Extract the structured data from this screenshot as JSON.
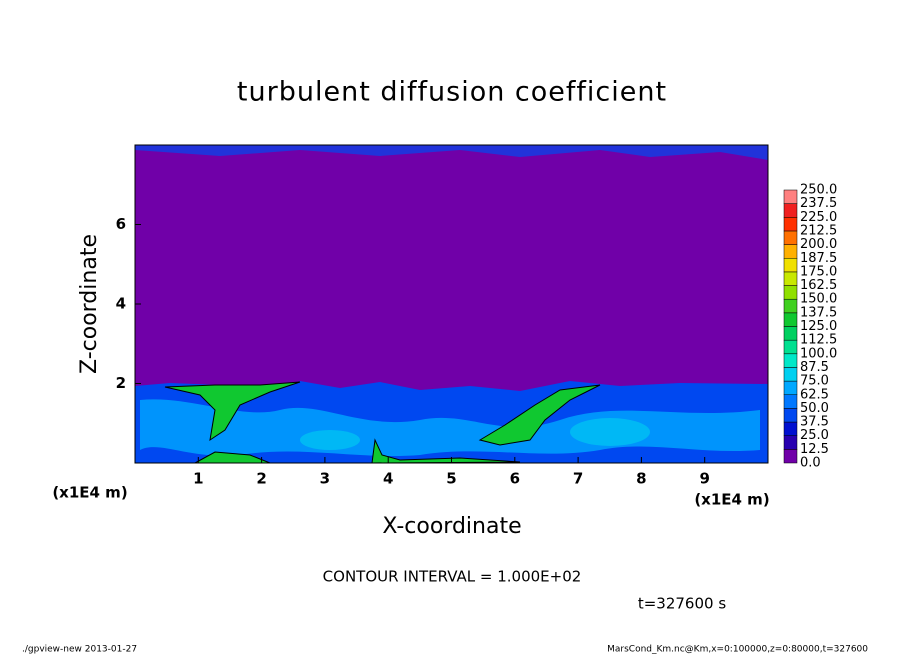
{
  "chart_data": {
    "type": "contour",
    "title": "turbulent diffusion coefficient",
    "x_label": "X-coordinate",
    "y_label": "Z-coordinate",
    "x_unit": "(x1E4 m)",
    "y_unit": "(x1E4 m)",
    "xlim": [
      0,
      10
    ],
    "xticks": [
      1,
      2,
      3,
      4,
      5,
      6,
      7,
      8,
      9
    ],
    "ylim": [
      0,
      8
    ],
    "yticks": [
      2,
      4,
      6
    ],
    "levels": [
      {
        "value": 0,
        "label": "0.0"
      },
      {
        "value": 12.5,
        "label": "12.5"
      },
      {
        "value": 25,
        "label": "25.0"
      },
      {
        "value": 37.5,
        "label": "37.5"
      },
      {
        "value": 50,
        "label": "50.0"
      },
      {
        "value": 62.5,
        "label": "62.5"
      },
      {
        "value": 75,
        "label": "75.0"
      },
      {
        "value": 87.5,
        "label": "87.5"
      },
      {
        "value": 100,
        "label": "100.0"
      },
      {
        "value": 112.5,
        "label": "112.5"
      },
      {
        "value": 125,
        "label": "125.0"
      },
      {
        "value": 137.5,
        "label": "137.5"
      },
      {
        "value": 150,
        "label": "150.0"
      },
      {
        "value": 162.5,
        "label": "162.5"
      },
      {
        "value": 175,
        "label": "175.0"
      },
      {
        "value": 187.5,
        "label": "187.5"
      },
      {
        "value": 200,
        "label": "200.0"
      },
      {
        "value": 212.5,
        "label": "212.5"
      },
      {
        "value": 225,
        "label": "225.0"
      },
      {
        "value": 237.5,
        "label": "237.5"
      },
      {
        "value": 250,
        "label": "250.0"
      }
    ],
    "colors": [
      "#7000a8",
      "#2800b0",
      "#0010d0",
      "#0048f0",
      "#0078ff",
      "#00a8ff",
      "#00d0f0",
      "#00e8c8",
      "#00e090",
      "#00d060",
      "#10c830",
      "#40d020",
      "#90e000",
      "#c8e800",
      "#f0e000",
      "#ffb000",
      "#ff7000",
      "#ff3000",
      "#f02020",
      "#ff8080"
    ],
    "contour_label": "CONTOUR INTERVAL = 1.000E+02",
    "time_label": "t=327600 s",
    "footer_left": "./gpview-new  2013-01-27",
    "footer_right": "MarsCond_Km.nc@Km,x=0:100000,z=0:80000,t=327600"
  }
}
